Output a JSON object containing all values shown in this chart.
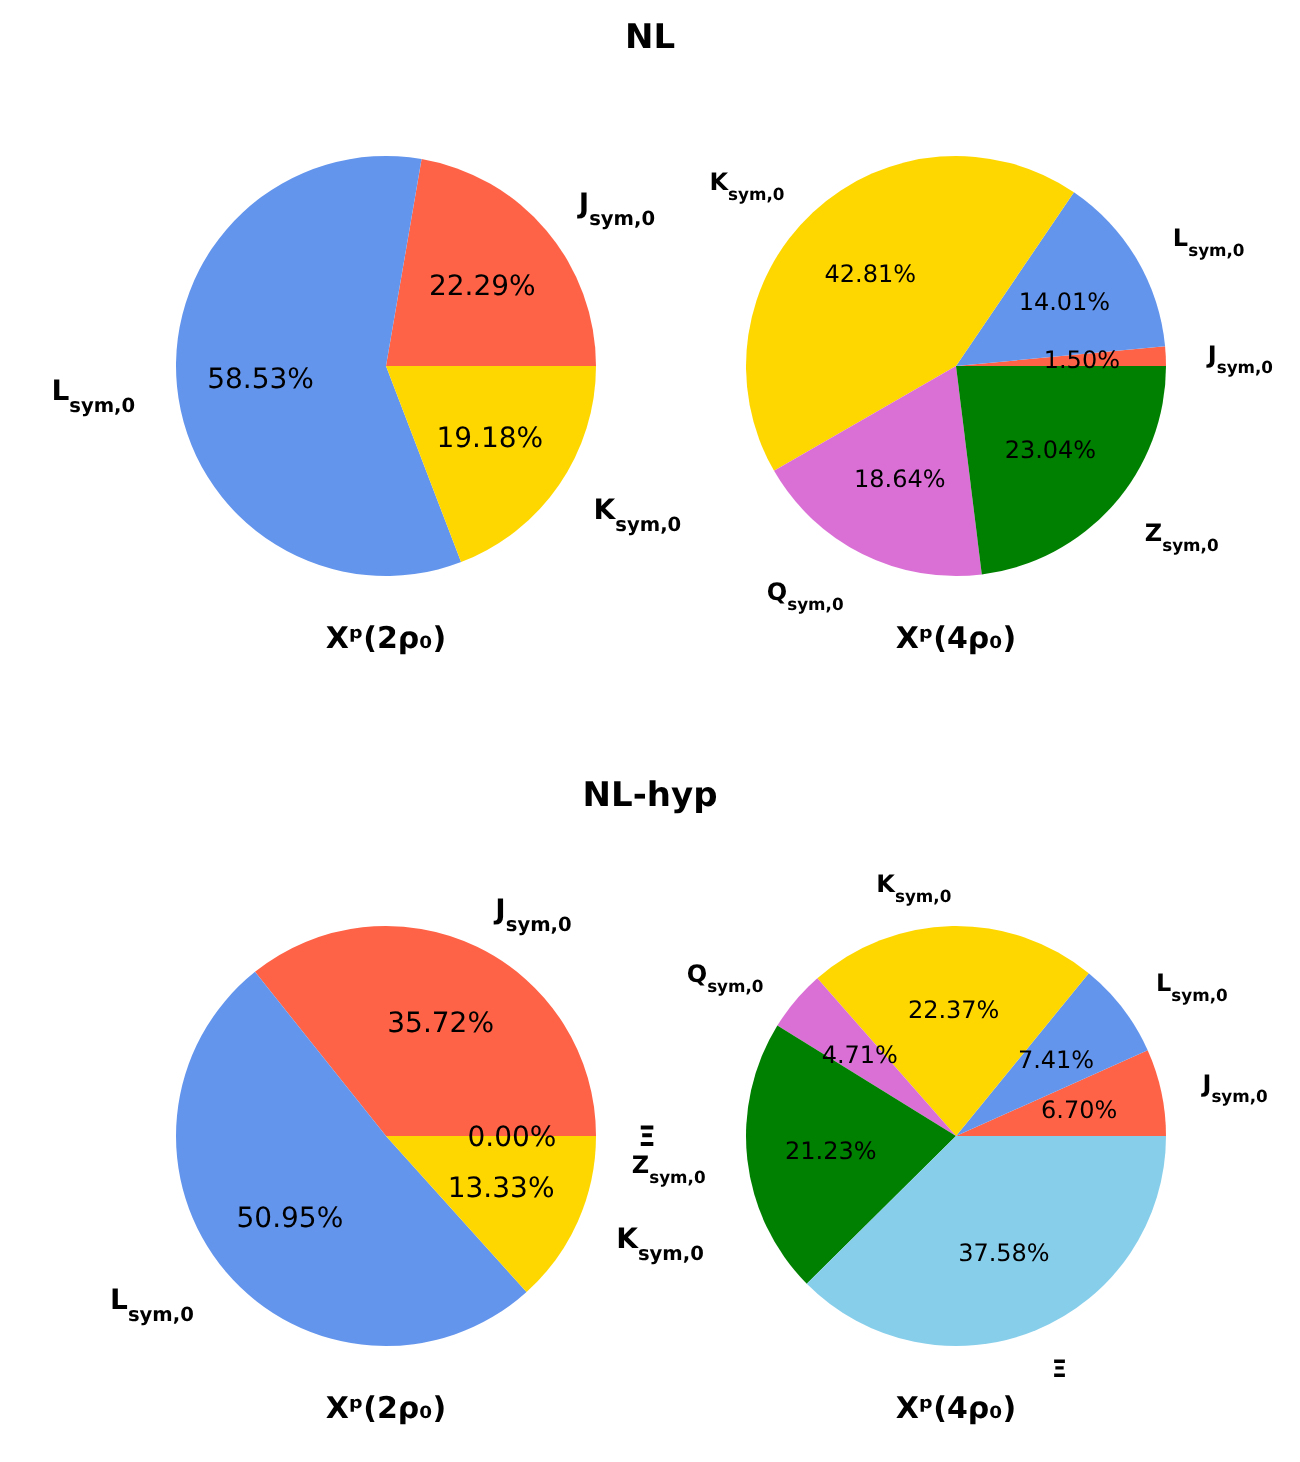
{
  "chart_data": [
    {
      "type": "pie",
      "title": "NL",
      "xlabel": "Xᵖ(2ρ₀)",
      "categories": [
        "J$_{sym,0}$",
        "L$_{sym,0}$",
        "K$_{sym,0}$"
      ],
      "values": [
        22.29,
        58.53,
        19.18
      ],
      "colors": [
        "#ff6347",
        "#6495ed",
        "#ffd700"
      ],
      "value_labels": [
        "22.29%",
        "58.53%",
        "19.18%"
      ]
    },
    {
      "type": "pie",
      "xlabel": "Xᵖ(4ρ₀)",
      "categories": [
        "J$_{sym,0}$",
        "L$_{sym,0}$",
        "K$_{sym,0}$",
        "Q$_{sym,0}$",
        "Z$_{sym,0}$"
      ],
      "values": [
        1.5,
        14.01,
        42.81,
        18.64,
        23.04
      ],
      "colors": [
        "#ff6347",
        "#6495ed",
        "#ffd700",
        "#da70d6",
        "#008000"
      ],
      "value_labels": [
        "1.50%",
        "14.01%",
        "42.81%",
        "18.64%",
        "23.04%"
      ]
    },
    {
      "type": "pie",
      "title": "NL-hyp",
      "xlabel": "Xᵖ(2ρ₀)",
      "categories": [
        "J$_{sym,0}$",
        "L$_{sym,0}$",
        "K$_{sym,0}$",
        "Ξ"
      ],
      "values": [
        35.72,
        50.95,
        13.33,
        0
      ],
      "colors": [
        "#ff6347",
        "#6495ed",
        "#ffd700",
        "#87ceeb"
      ],
      "value_labels": [
        "35.72%",
        "50.95%",
        "13.33%",
        "0.00%"
      ]
    },
    {
      "type": "pie",
      "xlabel": "Xᵖ(4ρ₀)",
      "categories": [
        "J$_{sym,0}$",
        "L$_{sym,0}$",
        "K$_{sym,0}$",
        "Q$_{sym,0}$",
        "Z$_{sym,0}$",
        "Ξ"
      ],
      "values": [
        6.7,
        7.41,
        22.37,
        4.71,
        21.23,
        37.58
      ],
      "colors": [
        "#ff6347",
        "#6495ed",
        "#ffd700",
        "#da70d6",
        "#008000",
        "#87ceeb"
      ],
      "value_labels": [
        "6.70%",
        "7.41%",
        "22.37%",
        "4.71%",
        "21.23%",
        "37.58%"
      ]
    }
  ]
}
